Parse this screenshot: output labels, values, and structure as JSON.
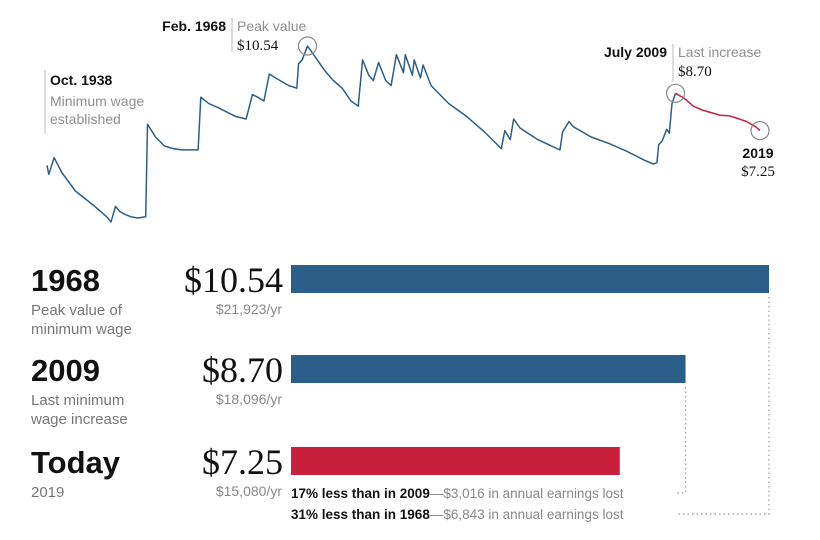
{
  "colors": {
    "blue": "#2b5f8a",
    "red": "#c8203c",
    "text": "#111111",
    "gray": "#8f8f8f",
    "marker": "#888888"
  },
  "chart_data": {
    "type": "line",
    "x_unit": "year",
    "y_unit": "USD (2019 dollars)",
    "series": [
      {
        "segment": "history",
        "color": "#2b5f8a",
        "points": [
          [
            1938.8,
            5.9
          ],
          [
            1939.0,
            5.55
          ],
          [
            1939.6,
            6.2
          ],
          [
            1940.5,
            5.6
          ],
          [
            1942.0,
            4.9
          ],
          [
            1944.0,
            4.35
          ],
          [
            1945.5,
            3.9
          ],
          [
            1946.0,
            3.7
          ],
          [
            1946.5,
            4.3
          ],
          [
            1947.0,
            4.1
          ],
          [
            1947.5,
            4.0
          ],
          [
            1948.2,
            3.9
          ],
          [
            1949.0,
            3.85
          ],
          [
            1949.9,
            3.9
          ],
          [
            1950.1,
            7.5
          ],
          [
            1951.0,
            7.0
          ],
          [
            1952.0,
            6.65
          ],
          [
            1953.0,
            6.55
          ],
          [
            1954.0,
            6.5
          ],
          [
            1955.0,
            6.5
          ],
          [
            1955.8,
            6.5
          ],
          [
            1956.1,
            8.55
          ],
          [
            1957.0,
            8.3
          ],
          [
            1958.0,
            8.15
          ],
          [
            1960.0,
            7.8
          ],
          [
            1961.2,
            7.7
          ],
          [
            1961.9,
            8.65
          ],
          [
            1962.5,
            8.55
          ],
          [
            1963.2,
            8.4
          ],
          [
            1963.8,
            9.45
          ],
          [
            1964.5,
            9.3
          ],
          [
            1966.0,
            9.0
          ],
          [
            1966.9,
            8.9
          ],
          [
            1967.1,
            9.85
          ],
          [
            1967.5,
            10.0
          ],
          [
            1968.1,
            10.54
          ],
          [
            1969.0,
            10.1
          ],
          [
            1970.0,
            9.6
          ],
          [
            1971.0,
            9.2
          ],
          [
            1972.0,
            8.9
          ],
          [
            1973.0,
            8.4
          ],
          [
            1973.8,
            8.2
          ],
          [
            1974.3,
            10.0
          ],
          [
            1975.0,
            9.4
          ],
          [
            1975.5,
            9.2
          ],
          [
            1976.1,
            9.9
          ],
          [
            1976.9,
            9.2
          ],
          [
            1977.5,
            9.0
          ],
          [
            1978.1,
            10.2
          ],
          [
            1978.9,
            9.5
          ],
          [
            1979.1,
            10.2
          ],
          [
            1979.9,
            9.4
          ],
          [
            1980.1,
            10.0
          ],
          [
            1980.8,
            9.3
          ],
          [
            1981.1,
            9.8
          ],
          [
            1982.0,
            9.0
          ],
          [
            1984.0,
            8.3
          ],
          [
            1986.0,
            7.8
          ],
          [
            1988.0,
            7.2
          ],
          [
            1989.9,
            6.55
          ],
          [
            1990.3,
            7.25
          ],
          [
            1990.9,
            6.9
          ],
          [
            1991.3,
            7.7
          ],
          [
            1992.0,
            7.35
          ],
          [
            1994.0,
            6.9
          ],
          [
            1996.5,
            6.5
          ],
          [
            1996.8,
            7.2
          ],
          [
            1997.5,
            7.6
          ],
          [
            1998.0,
            7.4
          ],
          [
            2000.0,
            7.0
          ],
          [
            2002.0,
            6.75
          ],
          [
            2004.0,
            6.45
          ],
          [
            2006.0,
            6.1
          ],
          [
            2007.0,
            5.95
          ],
          [
            2007.4,
            6.0
          ],
          [
            2007.6,
            6.7
          ],
          [
            2008.0,
            6.85
          ],
          [
            2008.5,
            7.3
          ],
          [
            2008.8,
            7.15
          ],
          [
            2009.1,
            8.3
          ],
          [
            2009.5,
            8.7
          ]
        ]
      },
      {
        "segment": "since_last_increase",
        "color": "#c8203c",
        "points": [
          [
            2009.5,
            8.7
          ],
          [
            2010.5,
            8.5
          ],
          [
            2011.5,
            8.2
          ],
          [
            2012.5,
            8.05
          ],
          [
            2013.5,
            7.95
          ],
          [
            2014.5,
            7.85
          ],
          [
            2015.5,
            7.83
          ],
          [
            2016.5,
            7.72
          ],
          [
            2017.5,
            7.6
          ],
          [
            2018.5,
            7.4
          ],
          [
            2019.0,
            7.25
          ]
        ]
      }
    ],
    "markers": [
      {
        "x": 1968.1,
        "y": 10.54
      },
      {
        "x": 2009.5,
        "y": 8.7
      },
      {
        "x": 2019.0,
        "y": 7.25
      }
    ],
    "annotations": {
      "oct1938": {
        "date": "Oct. 1938",
        "lines": [
          "Minimum wage",
          "established"
        ]
      },
      "feb1968": {
        "date": "Feb. 1968",
        "label": "Peak value",
        "value": "$10.54"
      },
      "jul2009": {
        "date": "July 2009",
        "label": "Last increase",
        "value": "$8.70"
      },
      "y2019": {
        "date": "2019",
        "value": "$7.25"
      }
    },
    "bars": {
      "type": "bar",
      "orientation": "horizontal",
      "scale_max": 10.54,
      "items": [
        {
          "title": "1968",
          "subtitle": [
            "Peak value of",
            "minimum wage"
          ],
          "value": 10.54,
          "value_label": "$10.54",
          "annual": "$21,923/yr",
          "color": "#2b5f8a"
        },
        {
          "title": "2009",
          "subtitle": [
            "Last minimum",
            "wage increase"
          ],
          "value": 8.7,
          "value_label": "$8.70",
          "annual": "$18,096/yr",
          "color": "#2b5f8a"
        },
        {
          "title": "Today",
          "subtitle": [
            "2019"
          ],
          "value": 7.25,
          "value_label": "$7.25",
          "annual": "$15,080/yr",
          "color": "#c8203c"
        }
      ]
    },
    "comparisons": [
      {
        "bold": "17% less than in 2009",
        "rest": "$3,016 in annual earnings lost"
      },
      {
        "bold": "31% less than in 1968",
        "rest": "$6,843 in annual earnings lost"
      }
    ]
  }
}
